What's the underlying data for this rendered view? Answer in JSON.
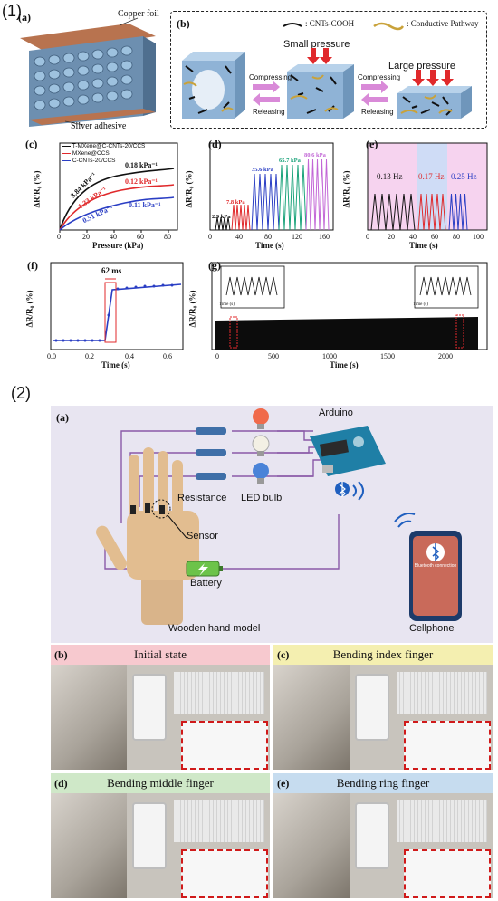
{
  "section1_label": "(1)",
  "section2_label": "(2)",
  "panel_a": {
    "letter": "(a)",
    "copper_foil": "Copper foil",
    "silver_adhesive": "Silver adhesive"
  },
  "panel_b": {
    "letter": "(b)",
    "legend_cnt": ": CNTs-COOH",
    "legend_path": ": Conductive Pathway",
    "small_pressure": "Small pressure",
    "large_pressure": "Large pressure",
    "compressing": "Compressing",
    "releasing": "Releasing"
  },
  "panel_c": {
    "letter": "(c)",
    "legend": [
      "T-MXene@C-CNTs-20/CCS",
      "MXene@CCS",
      "C-CNTs-20/CCS"
    ],
    "labels": [
      "3.84 kPa⁻¹",
      "0.18 kPa⁻¹",
      "1.33 kPa⁻¹",
      "0.12 kPa⁻¹",
      "0.51 kPa⁻¹",
      "0.11 kPa⁻¹"
    ],
    "xlabel": "Pressure (kPa)",
    "ylabel": "ΔR/R₀ (%)",
    "xticks": [
      "0",
      "20",
      "40",
      "60",
      "80"
    ],
    "yticks": [
      "0",
      "20",
      "40",
      "60",
      "80"
    ]
  },
  "panel_d": {
    "letter": "(d)",
    "labels": [
      "2.9 kPa",
      "7.8 kPa",
      "35.6 kPa",
      "65.7 kPa",
      "80.6 kPa"
    ],
    "xlabel": "Time (s)",
    "ylabel": "ΔR/R₀ (%)",
    "xticks": [
      "0",
      "40",
      "80",
      "120",
      "160"
    ],
    "yticks": [
      "0",
      "20",
      "40",
      "60"
    ]
  },
  "panel_e": {
    "letter": "(e)",
    "labels": [
      "0.13 Hz",
      "0.17 Hz",
      "0.25 Hz"
    ],
    "xlabel": "Time (s)",
    "ylabel": "ΔR/R₀ (%)",
    "xticks": [
      "0",
      "20",
      "40",
      "60",
      "80",
      "100"
    ],
    "yticks": [
      "0",
      "20",
      "40",
      "60"
    ]
  },
  "panel_f": {
    "letter": "(f)",
    "label": "62 ms",
    "xlabel": "Time (s)",
    "ylabel": "ΔR/R₀ (%)",
    "xticks": [
      "0.0",
      "0.2",
      "0.4",
      "0.6"
    ],
    "yticks": [
      "0",
      "20",
      "40"
    ]
  },
  "panel_g": {
    "letter": "(g)",
    "xlabel": "Time (s)",
    "ylabel": "ΔR/R₀ (%)",
    "xticks": [
      "0",
      "500",
      "1000",
      "1500",
      "2000"
    ],
    "yticks": [
      "0",
      "20",
      "40"
    ],
    "inset_ylabel": "ΔR/R₀ (%)",
    "inset_xlabel": "Time (s)"
  },
  "panel_2a": {
    "letter": "(a)",
    "arduino": "Arduino",
    "resistance": "Resistance",
    "led_bulb": "LED bulb",
    "sensor": "Sensor",
    "battery": "Battery",
    "wooden_hand": "Wooden hand model",
    "cellphone": "Cellphone",
    "bt_text": "Bluetooth connection"
  },
  "photo_panels": [
    {
      "letter": "(b)",
      "title": "Initial state",
      "color": "#f7c9cf"
    },
    {
      "letter": "(c)",
      "title": "Bending index finger",
      "color": "#f4efb0"
    },
    {
      "letter": "(d)",
      "title": "Bending middle finger",
      "color": "#cfe8c8"
    },
    {
      "letter": "(e)",
      "title": "Bending ring finger",
      "color": "#c6dcef"
    }
  ],
  "colors": {
    "black_series": "#111111",
    "red_series": "#e0292b",
    "blue_series": "#2a3ec4",
    "green_series": "#1aa37a",
    "violet_series": "#c266d6",
    "panel2_bg": "#e8e5f1",
    "wire": "#8a5aa8"
  }
}
